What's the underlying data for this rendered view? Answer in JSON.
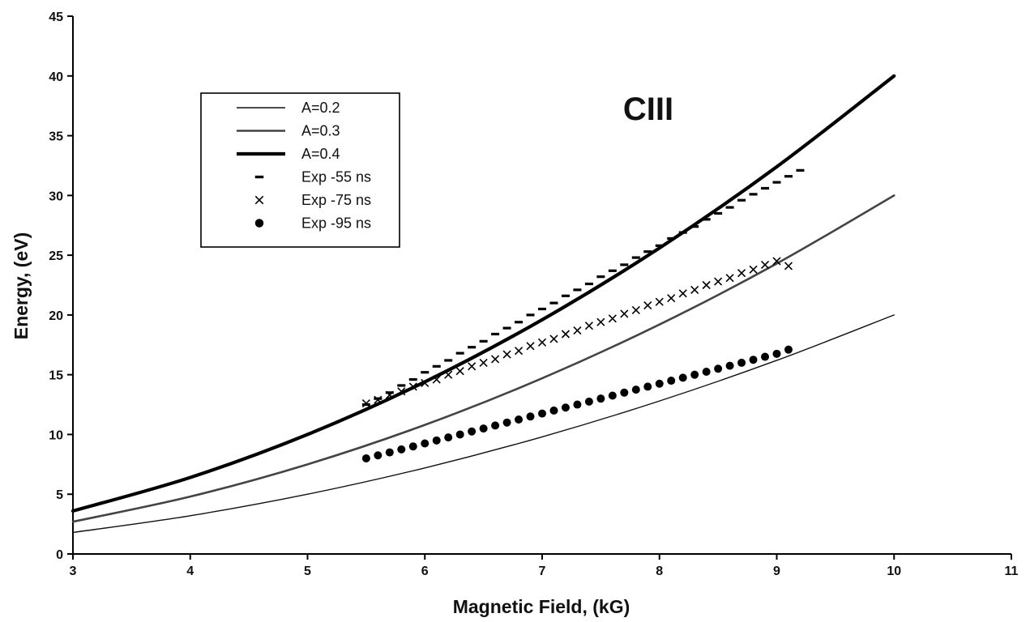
{
  "chart_data": {
    "type": "scatter",
    "title": "CIII",
    "xlabel": "Magnetic Field, (kG)",
    "ylabel": "Energy, (eV)",
    "xlim": [
      3,
      11
    ],
    "ylim": [
      0,
      45
    ],
    "xticks": [
      "3",
      "4",
      "5",
      "6",
      "7",
      "8",
      "9",
      "10",
      "11"
    ],
    "yticks": [
      "0",
      "5",
      "10",
      "15",
      "20",
      "25",
      "30",
      "35",
      "40",
      "45"
    ],
    "grid": false,
    "legend_position": "top-left",
    "series": [
      {
        "name": "A=0.2",
        "kind": "line",
        "style": "thin",
        "color": "#111111",
        "x": [
          3,
          4,
          5,
          6,
          7,
          8,
          9,
          10
        ],
        "y": [
          1.8,
          3.2,
          5.0,
          7.2,
          9.8,
          12.8,
          16.2,
          20.0
        ]
      },
      {
        "name": "A=0.3",
        "kind": "line",
        "style": "medium",
        "color": "#444444",
        "x": [
          3,
          4,
          5,
          6,
          7,
          8,
          9,
          10
        ],
        "y": [
          2.7,
          4.8,
          7.5,
          10.8,
          14.7,
          19.2,
          24.3,
          30.0
        ]
      },
      {
        "name": "A=0.4",
        "kind": "line",
        "style": "thick",
        "color": "#000000",
        "x": [
          3,
          4,
          5,
          6,
          7,
          8,
          9,
          10
        ],
        "y": [
          3.6,
          6.4,
          10.0,
          14.4,
          19.6,
          25.6,
          32.4,
          40.0
        ]
      },
      {
        "name": "Exp -55 ns",
        "kind": "marker",
        "marker": "dash",
        "color": "#000000",
        "x": [
          5.5,
          5.6,
          5.7,
          5.8,
          5.9,
          6.0,
          6.1,
          6.2,
          6.3,
          6.4,
          6.5,
          6.6,
          6.7,
          6.8,
          6.9,
          7.0,
          7.1,
          7.2,
          7.3,
          7.4,
          7.5,
          7.6,
          7.7,
          7.8,
          7.9,
          8.0,
          8.1,
          8.2,
          8.3,
          8.4,
          8.5,
          8.6,
          8.7,
          8.8,
          8.9,
          9.0,
          9.1,
          9.2
        ],
        "y": [
          12.5,
          13.0,
          13.5,
          14.1,
          14.6,
          15.2,
          15.7,
          16.2,
          16.8,
          17.3,
          17.8,
          18.4,
          18.9,
          19.4,
          20.0,
          20.5,
          21.0,
          21.6,
          22.1,
          22.6,
          23.2,
          23.7,
          24.2,
          24.8,
          25.3,
          25.8,
          26.4,
          26.9,
          27.4,
          28.0,
          28.5,
          29.0,
          29.6,
          30.1,
          30.6,
          31.1,
          31.6,
          32.1
        ]
      },
      {
        "name": "Exp -75 ns",
        "kind": "marker",
        "marker": "x",
        "color": "#000000",
        "x": [
          5.5,
          5.6,
          5.7,
          5.8,
          5.9,
          6.0,
          6.1,
          6.2,
          6.3,
          6.4,
          6.5,
          6.6,
          6.7,
          6.8,
          6.9,
          7.0,
          7.1,
          7.2,
          7.3,
          7.4,
          7.5,
          7.6,
          7.7,
          7.8,
          7.9,
          8.0,
          8.1,
          8.2,
          8.3,
          8.4,
          8.5,
          8.6,
          8.7,
          8.8,
          8.9,
          9.0,
          9.1
        ],
        "y": [
          12.6,
          12.9,
          13.3,
          13.6,
          14.0,
          14.3,
          14.6,
          15.0,
          15.3,
          15.7,
          16.0,
          16.3,
          16.7,
          17.0,
          17.4,
          17.7,
          18.0,
          18.4,
          18.7,
          19.1,
          19.4,
          19.7,
          20.1,
          20.4,
          20.8,
          21.1,
          21.4,
          21.8,
          22.1,
          22.5,
          22.8,
          23.1,
          23.5,
          23.8,
          24.2,
          24.5,
          24.1
        ]
      },
      {
        "name": "Exp -95 ns",
        "kind": "marker",
        "marker": "dot",
        "color": "#000000",
        "x": [
          5.5,
          5.6,
          5.7,
          5.8,
          5.9,
          6.0,
          6.1,
          6.2,
          6.3,
          6.4,
          6.5,
          6.6,
          6.7,
          6.8,
          6.9,
          7.0,
          7.1,
          7.2,
          7.3,
          7.4,
          7.5,
          7.6,
          7.7,
          7.8,
          7.9,
          8.0,
          8.1,
          8.2,
          8.3,
          8.4,
          8.5,
          8.6,
          8.7,
          8.8,
          8.9,
          9.0,
          9.1
        ],
        "y": [
          8.0,
          8.25,
          8.5,
          8.75,
          9.0,
          9.25,
          9.5,
          9.75,
          10.0,
          10.25,
          10.5,
          10.75,
          11.0,
          11.25,
          11.5,
          11.75,
          12.0,
          12.25,
          12.5,
          12.75,
          13.0,
          13.25,
          13.5,
          13.75,
          14.0,
          14.25,
          14.5,
          14.75,
          15.0,
          15.25,
          15.5,
          15.75,
          16.0,
          16.25,
          16.5,
          16.75,
          17.1
        ]
      }
    ]
  }
}
